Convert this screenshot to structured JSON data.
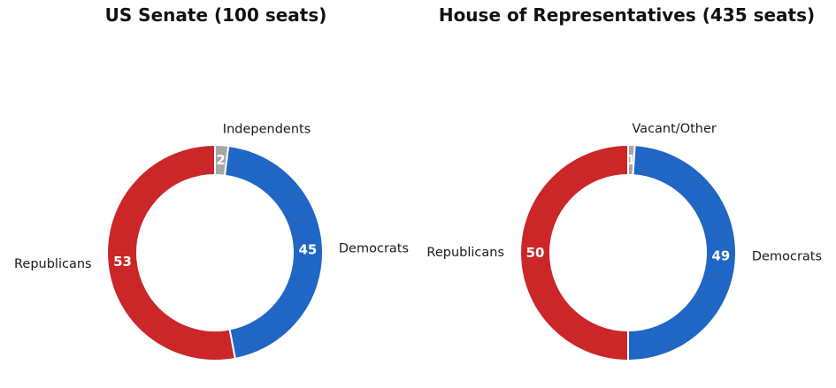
{
  "figure": {
    "background": "#ffffff",
    "label_text_color": "#1a1a1a",
    "value_text_color": "#ffffff",
    "wedge_edge_color": "#ffffff"
  },
  "chart_data": [
    {
      "type": "pie",
      "subtype": "donut",
      "title": "US Senate (100 seats)",
      "total": 100,
      "start_angle_deg": 90,
      "direction": "clockwise",
      "legend_position": "none",
      "slices": [
        {
          "label": "Independents",
          "value": 2,
          "color": "#a6a6a6"
        },
        {
          "label": "Democrats",
          "value": 45,
          "color": "#2066c5"
        },
        {
          "label": "Republicans",
          "value": 53,
          "color": "#cb2628"
        }
      ]
    },
    {
      "type": "pie",
      "subtype": "donut",
      "title": "House of Representatives (435 seats)",
      "total": 100,
      "start_angle_deg": 90,
      "direction": "clockwise",
      "legend_position": "none",
      "slices": [
        {
          "label": "Vacant/Other",
          "value": 1,
          "color": "#a6a6a6"
        },
        {
          "label": "Democrats",
          "value": 49,
          "color": "#2066c5"
        },
        {
          "label": "Republicans",
          "value": 50,
          "color": "#cb2628"
        }
      ]
    }
  ]
}
